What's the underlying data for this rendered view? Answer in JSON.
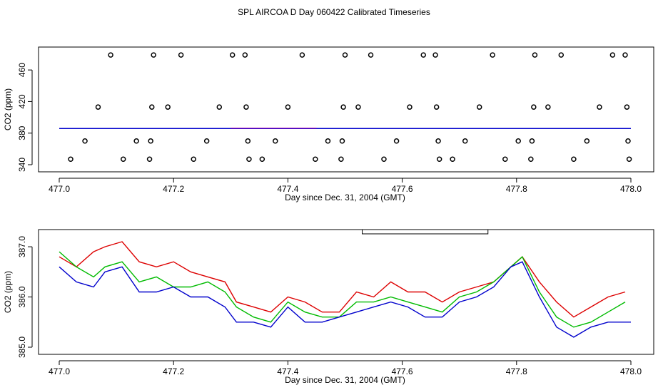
{
  "title": "SPL AIRCOA D  Day 060422  Calibrated Timeseries",
  "colors": {
    "red": "#dd0000",
    "green": "#00bb00",
    "blue": "#0000cc",
    "purple": "#aa00aa"
  },
  "chart_data": [
    {
      "type": "scatter",
      "xlabel": "Day since Dec. 31, 2004 (GMT)",
      "ylabel": "CO2 (ppm)",
      "xlim": [
        477.0,
        478.0
      ],
      "ylim": [
        340,
        480
      ],
      "xticks": [
        "477.0",
        "477.2",
        "477.4",
        "477.6",
        "477.8",
        "478.0"
      ],
      "yticks": [
        "340",
        "380",
        "420",
        "460"
      ],
      "points": [
        {
          "x": 477.02,
          "y": 347
        },
        {
          "x": 477.045,
          "y": 370
        },
        {
          "x": 477.068,
          "y": 413
        },
        {
          "x": 477.09,
          "y": 479
        },
        {
          "x": 477.112,
          "y": 347
        },
        {
          "x": 477.135,
          "y": 370
        },
        {
          "x": 477.158,
          "y": 347
        },
        {
          "x": 477.16,
          "y": 370
        },
        {
          "x": 477.162,
          "y": 413
        },
        {
          "x": 477.165,
          "y": 479
        },
        {
          "x": 477.19,
          "y": 413
        },
        {
          "x": 477.213,
          "y": 479
        },
        {
          "x": 477.235,
          "y": 347
        },
        {
          "x": 477.258,
          "y": 370
        },
        {
          "x": 477.28,
          "y": 413
        },
        {
          "x": 477.303,
          "y": 479
        },
        {
          "x": 477.325,
          "y": 479
        },
        {
          "x": 477.327,
          "y": 413
        },
        {
          "x": 477.33,
          "y": 370
        },
        {
          "x": 477.332,
          "y": 347
        },
        {
          "x": 477.355,
          "y": 347
        },
        {
          "x": 477.378,
          "y": 370
        },
        {
          "x": 477.4,
          "y": 413
        },
        {
          "x": 477.425,
          "y": 479
        },
        {
          "x": 477.448,
          "y": 347
        },
        {
          "x": 477.47,
          "y": 370
        },
        {
          "x": 477.493,
          "y": 347
        },
        {
          "x": 477.495,
          "y": 370
        },
        {
          "x": 477.497,
          "y": 413
        },
        {
          "x": 477.5,
          "y": 479
        },
        {
          "x": 477.523,
          "y": 413
        },
        {
          "x": 477.545,
          "y": 479
        },
        {
          "x": 477.568,
          "y": 347
        },
        {
          "x": 477.59,
          "y": 370
        },
        {
          "x": 477.613,
          "y": 413
        },
        {
          "x": 477.637,
          "y": 479
        },
        {
          "x": 477.658,
          "y": 479
        },
        {
          "x": 477.66,
          "y": 413
        },
        {
          "x": 477.663,
          "y": 370
        },
        {
          "x": 477.665,
          "y": 347
        },
        {
          "x": 477.688,
          "y": 347
        },
        {
          "x": 477.71,
          "y": 370
        },
        {
          "x": 477.735,
          "y": 413
        },
        {
          "x": 477.758,
          "y": 479
        },
        {
          "x": 477.78,
          "y": 347
        },
        {
          "x": 477.803,
          "y": 370
        },
        {
          "x": 477.825,
          "y": 347
        },
        {
          "x": 477.827,
          "y": 370
        },
        {
          "x": 477.83,
          "y": 413
        },
        {
          "x": 477.832,
          "y": 479
        },
        {
          "x": 477.855,
          "y": 413
        },
        {
          "x": 477.878,
          "y": 479
        },
        {
          "x": 477.9,
          "y": 347
        },
        {
          "x": 477.923,
          "y": 370
        },
        {
          "x": 477.945,
          "y": 413
        },
        {
          "x": 477.968,
          "y": 479
        },
        {
          "x": 477.99,
          "y": 479
        },
        {
          "x": 477.993,
          "y": 413
        },
        {
          "x": 477.995,
          "y": 370
        },
        {
          "x": 477.997,
          "y": 347
        }
      ],
      "baseline_y": 385.8
    },
    {
      "type": "line",
      "xlabel": "Day since Dec. 31, 2004 (GMT)",
      "ylabel": "CO2 (ppm)",
      "xlim": [
        477.0,
        478.0
      ],
      "ylim": [
        385.0,
        387.2
      ],
      "xticks": [
        "477.0",
        "477.2",
        "477.4",
        "477.6",
        "477.8",
        "478.0"
      ],
      "yticks": [
        "385.0",
        "386.0",
        "387.0"
      ],
      "series": [
        {
          "color": "#dd0000",
          "x": [
            477.0,
            477.03,
            477.06,
            477.08,
            477.11,
            477.14,
            477.17,
            477.2,
            477.23,
            477.26,
            477.29,
            477.31,
            477.34,
            477.37,
            477.4,
            477.43,
            477.46,
            477.49,
            477.52,
            477.55,
            477.58,
            477.61,
            477.64,
            477.67,
            477.7,
            477.73,
            477.76,
            477.79,
            477.81,
            477.84,
            477.87,
            477.9,
            477.93,
            477.96,
            477.99
          ],
          "y": [
            386.8,
            386.6,
            386.9,
            387.0,
            387.1,
            386.7,
            386.6,
            386.7,
            386.5,
            386.4,
            386.3,
            385.9,
            385.8,
            385.7,
            386.0,
            385.9,
            385.7,
            385.7,
            386.1,
            386.0,
            386.3,
            386.1,
            386.1,
            385.9,
            386.1,
            386.2,
            386.3,
            386.6,
            386.8,
            386.3,
            385.9,
            385.6,
            385.8,
            386.0,
            386.1
          ]
        },
        {
          "color": "#00bb00",
          "x": [
            477.0,
            477.03,
            477.06,
            477.08,
            477.11,
            477.14,
            477.17,
            477.2,
            477.23,
            477.26,
            477.29,
            477.31,
            477.34,
            477.37,
            477.4,
            477.43,
            477.46,
            477.49,
            477.52,
            477.55,
            477.58,
            477.61,
            477.64,
            477.67,
            477.7,
            477.73,
            477.76,
            477.79,
            477.81,
            477.84,
            477.87,
            477.9,
            477.93,
            477.96,
            477.99
          ],
          "y": [
            386.9,
            386.6,
            386.4,
            386.6,
            386.7,
            386.3,
            386.4,
            386.2,
            386.2,
            386.3,
            386.1,
            385.8,
            385.6,
            385.5,
            385.9,
            385.7,
            385.6,
            385.6,
            385.9,
            385.9,
            386.0,
            385.9,
            385.8,
            385.7,
            386.0,
            386.1,
            386.3,
            386.6,
            386.8,
            386.1,
            385.6,
            385.4,
            385.5,
            385.7,
            385.9
          ]
        },
        {
          "color": "#0000cc",
          "x": [
            477.0,
            477.03,
            477.06,
            477.08,
            477.11,
            477.14,
            477.17,
            477.2,
            477.23,
            477.26,
            477.29,
            477.31,
            477.34,
            477.37,
            477.4,
            477.43,
            477.46,
            477.49,
            477.52,
            477.55,
            477.58,
            477.61,
            477.64,
            477.67,
            477.7,
            477.73,
            477.76,
            477.79,
            477.81,
            477.84,
            477.87,
            477.9,
            477.93,
            477.96,
            478.0
          ],
          "y": [
            386.6,
            386.3,
            386.2,
            386.5,
            386.6,
            386.1,
            386.1,
            386.2,
            386.0,
            386.0,
            385.8,
            385.5,
            385.5,
            385.4,
            385.8,
            385.5,
            385.5,
            385.6,
            385.7,
            385.8,
            385.9,
            385.8,
            385.6,
            385.6,
            385.9,
            386.0,
            386.2,
            386.6,
            386.7,
            386.0,
            385.4,
            385.2,
            385.4,
            385.5,
            385.5
          ]
        }
      ]
    }
  ]
}
